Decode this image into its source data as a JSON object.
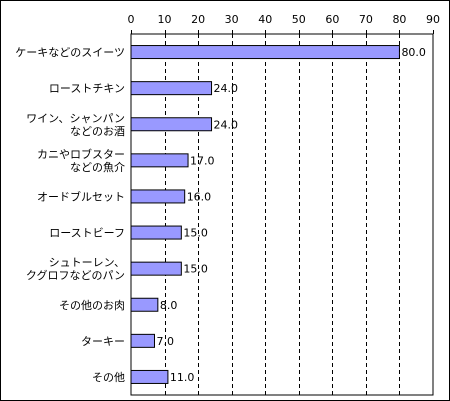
{
  "chart_data": {
    "type": "bar",
    "orientation": "horizontal",
    "title": "",
    "xlabel": "",
    "ylabel": "",
    "xlim": [
      0,
      90
    ],
    "ticks": [
      0,
      10,
      20,
      30,
      40,
      50,
      60,
      70,
      80,
      90
    ],
    "grid": true,
    "bar_color": "#9999ff",
    "categories": [
      [
        "ケーキなどのスイーツ"
      ],
      [
        "ローストチキン"
      ],
      [
        "ワイン、シャンパン",
        "などのお酒"
      ],
      [
        "カニやロブスター",
        "などの魚介"
      ],
      [
        "オードブルセット"
      ],
      [
        "ローストビーフ"
      ],
      [
        "シュトーレン、",
        "クグロフなどのパン"
      ],
      [
        "その他のお肉"
      ],
      [
        "ターキー"
      ],
      [
        "その他"
      ]
    ],
    "values": [
      80.0,
      24.0,
      24.0,
      17.0,
      16.0,
      15.0,
      15.0,
      8.0,
      7.0,
      11.0
    ],
    "value_labels": [
      "80.0",
      "24.0",
      "24.0",
      "17.0",
      "16.0",
      "15.0",
      "15.0",
      "8.0",
      "7.0",
      "11.0"
    ]
  }
}
